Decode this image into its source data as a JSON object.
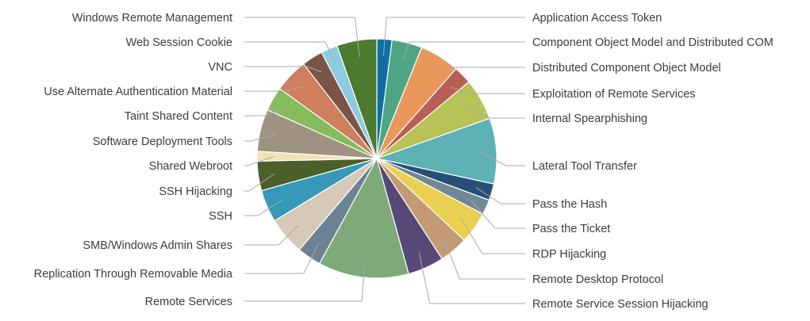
{
  "chart_data": {
    "type": "pie",
    "title": "",
    "legend": "none",
    "slices": [
      {
        "label": "Application Access Token",
        "value": 2.0,
        "color": "#0f6fa5"
      },
      {
        "label": "Component Object Model and Distributed COM",
        "value": 4.0,
        "color": "#4ea583"
      },
      {
        "label": "Distributed Component Object Model",
        "value": 5.3,
        "color": "#e9975b"
      },
      {
        "label": "Exploitation of Remote Services",
        "value": 2.4,
        "color": "#b75f55"
      },
      {
        "label": "Internal Spearphishing",
        "value": 5.5,
        "color": "#b7c257"
      },
      {
        "label": "Lateral Tool Transfer",
        "value": 8.7,
        "color": "#5eb2b5"
      },
      {
        "label": "Pass the Hash",
        "value": 2.2,
        "color": "#284f76"
      },
      {
        "label": "Pass the Ticket",
        "value": 2.0,
        "color": "#738896"
      },
      {
        "label": "RDP Hijacking",
        "value": 4.2,
        "color": "#e9d052"
      },
      {
        "label": "Remote Desktop Protocol",
        "value": 3.8,
        "color": "#c49a74"
      },
      {
        "label": "Remote Service Session Hijacking",
        "value": 4.8,
        "color": "#584877"
      },
      {
        "label": "Remote Services",
        "value": 12.0,
        "color": "#7ea978"
      },
      {
        "label": "Replication Through Removable Media",
        "value": 3.2,
        "color": "#6c8292"
      },
      {
        "label": "SMB/Windows Admin Shares",
        "value": 5.0,
        "color": "#d6c9b8"
      },
      {
        "label": "SSH",
        "value": 4.3,
        "color": "#3599b7"
      },
      {
        "label": "SSH Hijacking",
        "value": 3.9,
        "color": "#4c5e2a"
      },
      {
        "label": "Shared Webroot",
        "value": 1.3,
        "color": "#efe4b6"
      },
      {
        "label": "Software Deployment Tools",
        "value": 5.6,
        "color": "#9e9380"
      },
      {
        "label": "Taint Shared Content",
        "value": 3.2,
        "color": "#86bc5b"
      },
      {
        "label": "Use Alternate Authentication Material",
        "value": 4.5,
        "color": "#cf7e5e"
      },
      {
        "label": "VNC",
        "value": 2.8,
        "color": "#7a5446"
      },
      {
        "label": "Web Session Cookie",
        "value": 2.2,
        "color": "#8dcce0"
      },
      {
        "label": "Windows Remote Management",
        "value": 5.3,
        "color": "#4a7b2e"
      }
    ]
  }
}
